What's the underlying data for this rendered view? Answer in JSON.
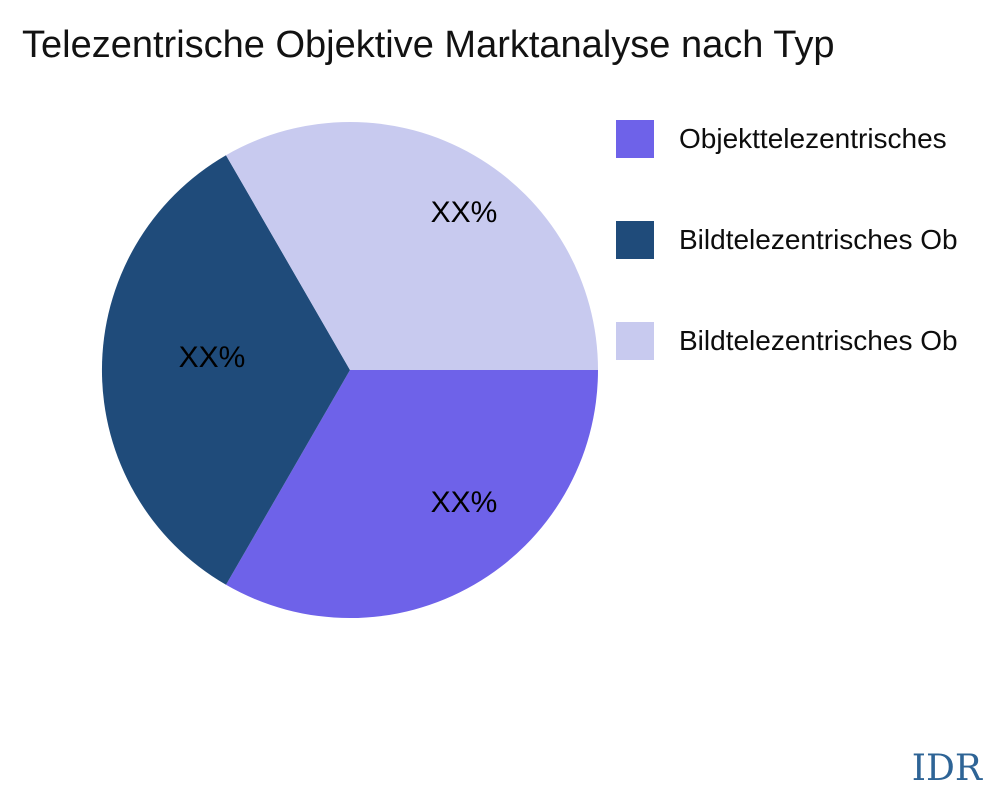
{
  "title": "Telezentrische Objektive Marktanalyse nach Typ",
  "watermark": "IDR",
  "colors": {
    "background": "#ffffff",
    "title_text": "#121212",
    "label_text": "#000000",
    "watermark_text": "#2E6496"
  },
  "chart_data": {
    "type": "pie",
    "title": "Telezentrische Objektive Marktanalyse nach Typ",
    "start_angle_deg": 0,
    "direction": "clockwise",
    "legend_position": "right",
    "slices": [
      {
        "label": "Objekttelezentrisches",
        "value": 33.33,
        "display_value": "XX%",
        "color": "#6E62E9"
      },
      {
        "label": "Bildtelezentrisches Ob",
        "value": 33.33,
        "display_value": "XX%",
        "color": "#1F4B7A"
      },
      {
        "label": "Bildtelezentrisches Ob",
        "value": 33.33,
        "display_value": "XX%",
        "color": "#C8CAEF"
      }
    ]
  }
}
